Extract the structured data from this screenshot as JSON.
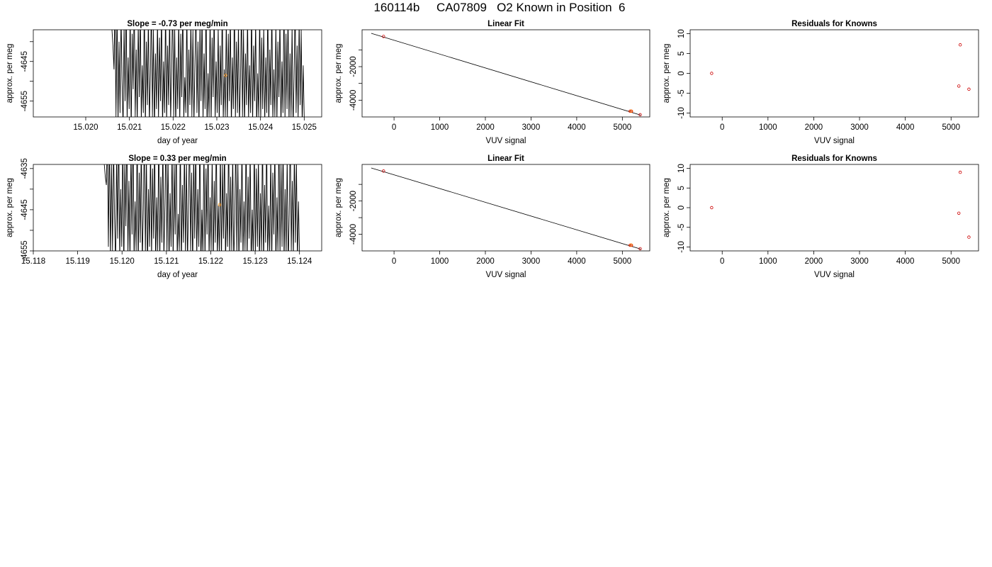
{
  "header": {
    "title": "160114b     CA07809   O2 Known in Position  6"
  },
  "chart_data": [
    {
      "type": "line",
      "title": "Slope =  -0.73  per meg/min",
      "xlabel": "day of year",
      "ylabel": "approx. per meg",
      "xlim": [
        15.0188,
        15.0254
      ],
      "ylim": [
        -4659,
        -4637
      ],
      "xticks": [
        "15.020",
        "15.021",
        "15.022",
        "15.023",
        "15.024",
        "15.025"
      ],
      "yticks": [
        -4645,
        -4655
      ],
      "ytick_labels": [
        "-4645",
        "-4655"
      ],
      "ytick_minor": [
        -4640,
        -4650
      ],
      "series": [
        {
          "color": "#000000",
          "x_start": 15.0206,
          "x_end": 15.025,
          "values": [
            -4637,
            -4641,
            -4647,
            -4631,
            -4659,
            -4630,
            -4661,
            -4640,
            -4658,
            -4633,
            -4650,
            -4662,
            -4636,
            -4655,
            -4629,
            -4660,
            -4644,
            -4657,
            -4632,
            -4663,
            -4638,
            -4652,
            -4628,
            -4659,
            -4642,
            -4661,
            -4635,
            -4654,
            -4631,
            -4660,
            -4646,
            -4658,
            -4629,
            -4662,
            -4640,
            -4656,
            -4633,
            -4661,
            -4648,
            -4630,
            -4659,
            -4637,
            -4663,
            -4643,
            -4657,
            -4634,
            -4660,
            -4639,
            -4655,
            -4631,
            -4662,
            -4645,
            -4658,
            -4630,
            -4661,
            -4641,
            -4656,
            -4632,
            -4660,
            -4647,
            -4629,
            -4659,
            -4636,
            -4662,
            -4644,
            -4657,
            -4633,
            -4661,
            -4638,
            -4654,
            -4630,
            -4660,
            -4649,
            -4658,
            -4631,
            -4662,
            -4642,
            -4656,
            -4634,
            -4659,
            -4637,
            -4661,
            -4646,
            -4630,
            -4658,
            -4640,
            -4663,
            -4635,
            -4655,
            -4632,
            -4660,
            -4643,
            -4657,
            -4629,
            -4662,
            -4648,
            -4659,
            -4633,
            -4661,
            -4639,
            -4654,
            -4631,
            -4660,
            -4645,
            -4658,
            -4636,
            -4662,
            -4641,
            -4656,
            -4630,
            -4660,
            -4647,
            -4659,
            -4634,
            -4661,
            -4638,
            -4655,
            -4632,
            -4662,
            -4644,
            -4657,
            -4629,
            -4660,
            -4640,
            -4658,
            -4635,
            -4661,
            -4650,
            -4631,
            -4659,
            -4637,
            -4662,
            -4643,
            -4656,
            -4633,
            -4660,
            -4646,
            -4658,
            -4630,
            -4661,
            -4641,
            -4655,
            -4634,
            -4662,
            -4648,
            -4659,
            -4632,
            -4660,
            -4639,
            -4657,
            -4636,
            -4661,
            -4644,
            -4658,
            -4630,
            -4662,
            -4642,
            -4656,
            -4631,
            -4660,
            -4647,
            -4659,
            -4635,
            -4661,
            -4640,
            -4654,
            -4633,
            -4662,
            -4645,
            -4658,
            -4629,
            -4660,
            -4638,
            -4657,
            -4632,
            -4661,
            -4643,
            -4659,
            -4636,
            -4662,
            -4649,
            -4630,
            -4658,
            -4641,
            -4660,
            -4634,
            -4656,
            -4637,
            -4661,
            -4646,
            -4659
          ]
        }
      ],
      "points": [
        {
          "x": 15.0232,
          "y": -4648.5,
          "color": "#ff8c00"
        }
      ]
    },
    {
      "type": "scatter",
      "title": "Linear Fit",
      "xlabel": "VUV signal",
      "ylabel": "approx. per meg",
      "xlim": [
        -700,
        5600
      ],
      "ylim": [
        -5000,
        200
      ],
      "xticks": [
        0,
        1000,
        2000,
        3000,
        4000,
        5000
      ],
      "xtick_labels": [
        "0",
        "1000",
        "2000",
        "3000",
        "4000",
        "5000"
      ],
      "yticks": [
        -2000,
        -4000
      ],
      "ytick_labels": [
        "-2000",
        "-4000"
      ],
      "ytick_minor": [
        -1000,
        -3000
      ],
      "fit_line": {
        "x": [
          -500,
          5400
        ],
        "y": [
          -11,
          -4889
        ]
      },
      "points": [
        {
          "x": -230,
          "y": -199,
          "color": "#cc0000"
        },
        {
          "x": 5170,
          "y": -4661,
          "color": "#cc0000"
        },
        {
          "x": 5200,
          "y": -4661,
          "color": "#cc0000"
        },
        {
          "x": 5390,
          "y": -4868,
          "color": "#cc0000"
        },
        {
          "x": 5190,
          "y": -4648,
          "color": "#ff8c00"
        }
      ]
    },
    {
      "type": "scatter",
      "title": "Residuals for Knowns",
      "xlabel": "VUV signal",
      "ylabel": "approx. per meg",
      "xlim": [
        -700,
        5600
      ],
      "ylim": [
        -11,
        11
      ],
      "xticks": [
        0,
        1000,
        2000,
        3000,
        4000,
        5000
      ],
      "xtick_labels": [
        "0",
        "1000",
        "2000",
        "3000",
        "4000",
        "5000"
      ],
      "yticks": [
        10,
        5,
        0,
        -5,
        -10
      ],
      "ytick_labels": [
        "10",
        "5",
        "0",
        "-5",
        "-10"
      ],
      "points": [
        {
          "x": -230,
          "y": 0,
          "color": "#cc0000"
        },
        {
          "x": 5200,
          "y": 7.2,
          "color": "#cc0000"
        },
        {
          "x": 5170,
          "y": -3.2,
          "color": "#cc0000"
        },
        {
          "x": 5390,
          "y": -4.0,
          "color": "#cc0000"
        }
      ]
    },
    {
      "type": "line",
      "title": "Slope =  0.33  per meg/min",
      "xlabel": "day of year",
      "ylabel": "approx. per meg",
      "xlim": [
        15.118,
        15.1245
      ],
      "ylim": [
        -4655,
        -4634
      ],
      "xticks": [
        "15.118",
        "15.119",
        "15.120",
        "15.121",
        "15.122",
        "15.123",
        "15.124"
      ],
      "yticks": [
        -4635,
        -4645,
        -4655
      ],
      "ytick_labels": [
        "-4635",
        "-4645",
        "-4655"
      ],
      "ytick_minor": [
        -4640,
        -4650
      ],
      "series": [
        {
          "color": "#000000",
          "x_start": 15.1196,
          "x_end": 15.124,
          "values": [
            -4634,
            -4637,
            -4639,
            -4628,
            -4654,
            -4626,
            -4657,
            -4634,
            -4655,
            -4629,
            -4647,
            -4659,
            -4631,
            -4652,
            -4625,
            -4657,
            -4640,
            -4654,
            -4627,
            -4660,
            -4633,
            -4649,
            -4624,
            -4656,
            -4638,
            -4658,
            -4630,
            -4651,
            -4626,
            -4657,
            -4643,
            -4655,
            -4625,
            -4659,
            -4636,
            -4653,
            -4628,
            -4658,
            -4645,
            -4626,
            -4656,
            -4632,
            -4660,
            -4640,
            -4654,
            -4629,
            -4657,
            -4635,
            -4652,
            -4627,
            -4659,
            -4642,
            -4655,
            -4625,
            -4658,
            -4637,
            -4653,
            -4628,
            -4657,
            -4644,
            -4625,
            -4656,
            -4631,
            -4659,
            -4641,
            -4654,
            -4629,
            -4658,
            -4634,
            -4651,
            -4626,
            -4657,
            -4646,
            -4655,
            -4627,
            -4659,
            -4639,
            -4653,
            -4630,
            -4656,
            -4633,
            -4658,
            -4643,
            -4626,
            -4655,
            -4636,
            -4660,
            -4631,
            -4652,
            -4628,
            -4657,
            -4640,
            -4654,
            -4625,
            -4659,
            -4645,
            -4656,
            -4629,
            -4658,
            -4635,
            -4651,
            -4627,
            -4657,
            -4642,
            -4655,
            -4632,
            -4659,
            -4638,
            -4653,
            -4626,
            -4657,
            -4644,
            -4656,
            -4630,
            -4658,
            -4634,
            -4652,
            -4628,
            -4659,
            -4641,
            -4654,
            -4625,
            -4657,
            -4637,
            -4655,
            -4631,
            -4658,
            -4647,
            -4627,
            -4656,
            -4633,
            -4659,
            -4640,
            -4653,
            -4629,
            -4657,
            -4643,
            -4655,
            -4626,
            -4658,
            -4637,
            -4652,
            -4630,
            -4659,
            -4645,
            -4656,
            -4628,
            -4657,
            -4635,
            -4654,
            -4632,
            -4658,
            -4641,
            -4655,
            -4626,
            -4659,
            -4639,
            -4653,
            -4627,
            -4657,
            -4644,
            -4656,
            -4631,
            -4658,
            -4636,
            -4651,
            -4629,
            -4659,
            -4642,
            -4655,
            -4625,
            -4657,
            -4634,
            -4654,
            -4628,
            -4658,
            -4640,
            -4656,
            -4632,
            -4659,
            -4646,
            -4626,
            -4655,
            -4638,
            -4657,
            -4630,
            -4653,
            -4633,
            -4658,
            -4643,
            -4656
          ]
        }
      ],
      "points": [
        {
          "x": 15.1222,
          "y": -4643.8,
          "color": "#ff8c00"
        }
      ]
    },
    {
      "type": "scatter",
      "title": "Linear Fit",
      "xlabel": "VUV signal",
      "ylabel": "approx. per meg",
      "xlim": [
        -700,
        5600
      ],
      "ylim": [
        -5000,
        200
      ],
      "xticks": [
        0,
        1000,
        2000,
        3000,
        4000,
        5000
      ],
      "xtick_labels": [
        "0",
        "1000",
        "2000",
        "3000",
        "4000",
        "5000"
      ],
      "yticks": [
        -2000,
        -4000
      ],
      "ytick_labels": [
        "-2000",
        "-4000"
      ],
      "ytick_minor": [
        -1000,
        -3000
      ],
      "fit_line": {
        "x": [
          -500,
          5400
        ],
        "y": [
          -11,
          -4889
        ]
      },
      "points": [
        {
          "x": -230,
          "y": -199,
          "color": "#cc0000"
        },
        {
          "x": 5170,
          "y": -4661,
          "color": "#cc0000"
        },
        {
          "x": 5200,
          "y": -4661,
          "color": "#cc0000"
        },
        {
          "x": 5390,
          "y": -4868,
          "color": "#cc0000"
        },
        {
          "x": 5190,
          "y": -4648,
          "color": "#ff8c00"
        }
      ]
    },
    {
      "type": "scatter",
      "title": "Residuals for Knowns",
      "xlabel": "VUV signal",
      "ylabel": "approx. per meg",
      "xlim": [
        -700,
        5600
      ],
      "ylim": [
        -11,
        11
      ],
      "xticks": [
        0,
        1000,
        2000,
        3000,
        4000,
        5000
      ],
      "xtick_labels": [
        "0",
        "1000",
        "2000",
        "3000",
        "4000",
        "5000"
      ],
      "yticks": [
        10,
        5,
        0,
        -5,
        -10
      ],
      "ytick_labels": [
        "10",
        "5",
        "0",
        "-5",
        "-10"
      ],
      "points": [
        {
          "x": -230,
          "y": 0,
          "color": "#cc0000"
        },
        {
          "x": 5200,
          "y": 9.0,
          "color": "#cc0000"
        },
        {
          "x": 5170,
          "y": -1.4,
          "color": "#cc0000"
        },
        {
          "x": 5390,
          "y": -7.5,
          "color": "#cc0000"
        }
      ]
    }
  ]
}
